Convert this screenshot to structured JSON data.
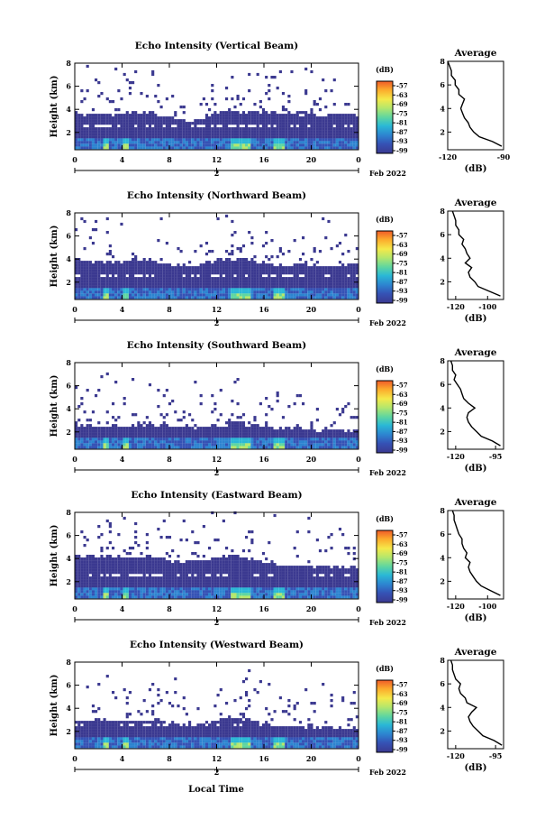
{
  "figure": {
    "xlabel": "Local Time",
    "date_label": "Feb 2022"
  },
  "colorbar": {
    "unit": "(dB)",
    "ticks": [
      "-57",
      "-63",
      "-69",
      "-75",
      "-81",
      "-87",
      "-93",
      "-99"
    ],
    "colors": [
      "#f05a28",
      "#fcab2c",
      "#f5e94a",
      "#b5e76b",
      "#5fd6a0",
      "#2ab8d6",
      "#2d84d0",
      "#3552b5",
      "#3b3990"
    ]
  },
  "chart_data": [
    {
      "type": "heatmap",
      "title": "Echo Intensity (Vertical Beam)",
      "ylabel": "Height (km)",
      "x_ticks": [
        "0",
        "4",
        "8",
        "12",
        "16",
        "20",
        "0"
      ],
      "x_day_label": "2",
      "y_ticks": [
        "2",
        "4",
        "6",
        "8"
      ],
      "xlim": [
        0,
        24
      ],
      "ylim": [
        0.5,
        8
      ],
      "cloud_top_km": [
        3.6,
        3.4,
        3.5,
        3.3,
        3.5,
        3.6,
        3.6,
        3.4,
        3.2,
        3.0,
        2.9,
        3.2,
        3.6,
        3.8,
        3.6,
        3.6,
        3.7,
        3.6,
        3.5,
        3.4,
        3.4,
        3.4,
        3.4,
        3.4,
        3.5
      ],
      "average_profile": {
        "title": "Average",
        "xlabel": "(dB)",
        "x_ticks": [
          "-120",
          "-90"
        ],
        "xlim": [
          -120,
          -90
        ],
        "y_ticks": [
          "2",
          "4",
          "6",
          "8"
        ],
        "ylim": [
          0.5,
          8
        ],
        "height_km": [
          0.8,
          1.2,
          1.6,
          2.0,
          2.4,
          2.8,
          3.2,
          3.6,
          4.0,
          4.4,
          4.8,
          5.2,
          5.6,
          6.0,
          6.4,
          6.8,
          7.2,
          7.6,
          8.0
        ],
        "values_db": [
          -91,
          -96,
          -103,
          -106,
          -108,
          -109,
          -111,
          -112,
          -113,
          -112,
          -111,
          -114,
          -114,
          -116,
          -116,
          -118,
          -118,
          -119,
          -120
        ]
      }
    },
    {
      "type": "heatmap",
      "title": "Echo Intensity (Northward Beam)",
      "ylabel": "Height (km)",
      "x_ticks": [
        "0",
        "4",
        "8",
        "12",
        "16",
        "20",
        "0"
      ],
      "x_day_label": "2",
      "y_ticks": [
        "2",
        "4",
        "6",
        "8"
      ],
      "xlim": [
        0,
        24
      ],
      "ylim": [
        0.5,
        8
      ],
      "cloud_top_km": [
        3.8,
        3.7,
        3.7,
        3.6,
        3.7,
        3.9,
        3.8,
        3.6,
        3.4,
        3.2,
        3.2,
        3.5,
        3.8,
        3.9,
        3.8,
        3.8,
        3.5,
        3.4,
        3.3,
        3.4,
        3.3,
        3.2,
        3.3,
        3.4,
        3.4
      ],
      "average_profile": {
        "title": "Average",
        "xlabel": "(dB)",
        "x_ticks": [
          "-120",
          "-100"
        ],
        "xlim": [
          -125,
          -90
        ],
        "y_ticks": [
          "2",
          "4",
          "6",
          "8"
        ],
        "ylim": [
          0.5,
          8
        ],
        "height_km": [
          0.8,
          1.2,
          1.6,
          2.0,
          2.4,
          2.8,
          3.2,
          3.6,
          4.0,
          4.4,
          4.8,
          5.2,
          5.6,
          6.0,
          6.4,
          6.8,
          7.2,
          7.6,
          8.0
        ],
        "values_db": [
          -92,
          -99,
          -106,
          -108,
          -111,
          -112,
          -110,
          -114,
          -111,
          -113,
          -114,
          -116,
          -115,
          -118,
          -118,
          -120,
          -120,
          -121,
          -122
        ]
      }
    },
    {
      "type": "heatmap",
      "title": "Echo Intensity (Southward Beam)",
      "ylabel": "Height (km)",
      "x_ticks": [
        "0",
        "4",
        "8",
        "12",
        "16",
        "20",
        "0"
      ],
      "x_day_label": "2",
      "y_ticks": [
        "2",
        "4",
        "6",
        "8"
      ],
      "xlim": [
        0,
        24
      ],
      "ylim": [
        0.5,
        8
      ],
      "cloud_top_km": [
        2.6,
        2.5,
        2.6,
        2.6,
        2.4,
        2.6,
        2.6,
        2.5,
        2.4,
        2.3,
        2.2,
        2.3,
        2.5,
        2.8,
        2.7,
        2.6,
        2.4,
        2.2,
        2.2,
        2.1,
        2.0,
        2.0,
        2.1,
        2.0,
        2.0
      ],
      "average_profile": {
        "title": "Average",
        "xlabel": "(dB)",
        "x_ticks": [
          "-120",
          "-95"
        ],
        "xlim": [
          -125,
          -90
        ],
        "y_ticks": [
          "2",
          "4",
          "6",
          "8"
        ],
        "ylim": [
          0.5,
          8
        ],
        "height_km": [
          0.8,
          1.2,
          1.6,
          2.0,
          2.4,
          2.8,
          3.2,
          3.6,
          4.0,
          4.4,
          4.8,
          5.2,
          5.6,
          6.0,
          6.4,
          6.8,
          7.2,
          7.6,
          8.0
        ],
        "values_db": [
          -92,
          -97,
          -104,
          -107,
          -110,
          -112,
          -113,
          -112,
          -108,
          -112,
          -115,
          -116,
          -117,
          -119,
          -121,
          -120,
          -122,
          -122,
          -123
        ]
      }
    },
    {
      "type": "heatmap",
      "title": "Echo Intensity (Eastward Beam)",
      "ylabel": "Height (km)",
      "x_ticks": [
        "0",
        "4",
        "8",
        "12",
        "16",
        "20",
        "0"
      ],
      "x_day_label": "2",
      "y_ticks": [
        "2",
        "4",
        "6",
        "8"
      ],
      "xlim": [
        0,
        24
      ],
      "ylim": [
        0.5,
        8
      ],
      "cloud_top_km": [
        4.2,
        4.0,
        4.1,
        4.0,
        3.9,
        4.0,
        4.1,
        3.9,
        3.7,
        3.6,
        3.6,
        3.8,
        4.0,
        4.1,
        4.0,
        3.8,
        3.6,
        3.4,
        3.3,
        3.3,
        3.2,
        3.1,
        3.2,
        3.2,
        3.2
      ],
      "average_profile": {
        "title": "Average",
        "xlabel": "(dB)",
        "x_ticks": [
          "-120",
          "-100"
        ],
        "xlim": [
          -125,
          -90
        ],
        "y_ticks": [
          "2",
          "4",
          "6",
          "8"
        ],
        "ylim": [
          0.5,
          8
        ],
        "height_km": [
          0.8,
          1.2,
          1.6,
          2.0,
          2.4,
          2.8,
          3.2,
          3.6,
          4.0,
          4.4,
          4.8,
          5.2,
          5.6,
          6.0,
          6.4,
          6.8,
          7.2,
          7.6,
          8.0
        ],
        "values_db": [
          -92,
          -98,
          -104,
          -107,
          -109,
          -111,
          -112,
          -111,
          -114,
          -113,
          -115,
          -116,
          -116,
          -118,
          -119,
          -120,
          -121,
          -121,
          -122
        ]
      }
    },
    {
      "type": "heatmap",
      "title": "Echo Intensity (Westward Beam)",
      "ylabel": "Height (km)",
      "x_ticks": [
        "0",
        "4",
        "8",
        "12",
        "16",
        "20",
        "0"
      ],
      "x_day_label": "2",
      "y_ticks": [
        "2",
        "4",
        "6",
        "8"
      ],
      "xlim": [
        0,
        24
      ],
      "ylim": [
        0.5,
        8
      ],
      "cloud_top_km": [
        2.8,
        2.8,
        2.9,
        2.8,
        2.7,
        2.8,
        2.9,
        2.8,
        2.6,
        2.5,
        2.4,
        2.6,
        2.9,
        3.1,
        3.0,
        2.8,
        2.7,
        2.5,
        2.4,
        2.3,
        2.2,
        2.2,
        2.3,
        2.2,
        2.2
      ],
      "average_profile": {
        "title": "Average",
        "xlabel": "(dB)",
        "x_ticks": [
          "-120",
          "-95"
        ],
        "xlim": [
          -125,
          -90
        ],
        "y_ticks": [
          "2",
          "4",
          "6",
          "8"
        ],
        "ylim": [
          0.5,
          8
        ],
        "height_km": [
          0.8,
          1.2,
          1.6,
          2.0,
          2.4,
          2.8,
          3.2,
          3.6,
          4.0,
          4.4,
          4.8,
          5.2,
          5.6,
          6.0,
          6.4,
          6.8,
          7.2,
          7.6,
          8.0
        ],
        "values_db": [
          -91,
          -96,
          -103,
          -106,
          -109,
          -111,
          -112,
          -110,
          -107,
          -113,
          -114,
          -117,
          -118,
          -117,
          -120,
          -121,
          -122,
          -122,
          -123
        ]
      }
    }
  ]
}
